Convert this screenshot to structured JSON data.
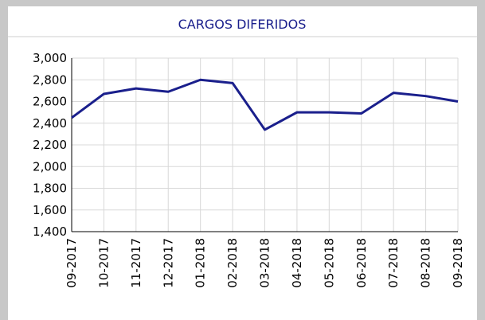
{
  "chart_data": {
    "type": "line",
    "title": "CARGOS DIFERIDOS",
    "categories": [
      "09-2017",
      "10-2017",
      "11-2017",
      "12-2017",
      "01-2018",
      "02-2018",
      "03-2018",
      "04-2018",
      "05-2018",
      "06-2018",
      "07-2018",
      "08-2018",
      "09-2018"
    ],
    "values": [
      2450,
      2670,
      2720,
      2690,
      2800,
      2770,
      2340,
      2500,
      2500,
      2490,
      2680,
      2650,
      2600
    ],
    "color": "#1a1f8c",
    "ylim": [
      1400,
      3000
    ],
    "yticks": [
      {
        "value": 1400,
        "label": "1,400"
      },
      {
        "value": 1600,
        "label": "1,600"
      },
      {
        "value": 1800,
        "label": "1,800"
      },
      {
        "value": 2000,
        "label": "2,000"
      },
      {
        "value": 2200,
        "label": "2,200"
      },
      {
        "value": 2400,
        "label": "2,400"
      },
      {
        "value": 2600,
        "label": "2,600"
      },
      {
        "value": 2800,
        "label": "2,800"
      },
      {
        "value": 3000,
        "label": "3,000"
      }
    ],
    "grid": true
  }
}
